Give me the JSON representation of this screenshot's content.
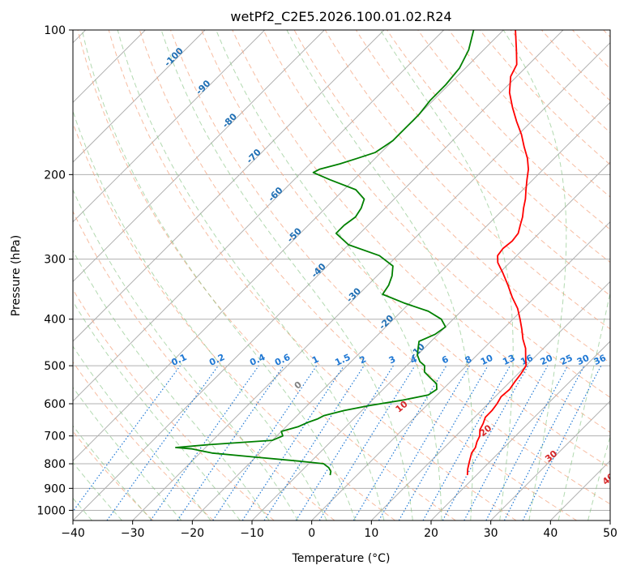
{
  "chart_data": {
    "type": "line",
    "diagram": "skew-T log-P",
    "title": "wetPf2_C2E5.2026.100.01.02.R24",
    "xlabel": "Temperature (°C)",
    "ylabel": "Pressure (hPa)",
    "xlim": [
      -40,
      50
    ],
    "ylim": [
      1050,
      100
    ],
    "y_scale": "log",
    "x_ticks": [
      -40,
      -30,
      -20,
      -10,
      0,
      10,
      20,
      30,
      40,
      50
    ],
    "y_ticks": [
      100,
      200,
      300,
      400,
      500,
      600,
      700,
      800,
      900,
      1000
    ],
    "grid": true,
    "colors": {
      "temperature": "#ff0000",
      "dewpoint": "#008000",
      "isotherm": "#b0b0b0",
      "dry_adiabat": "#f4a582",
      "moist_adiabat": "#7fbf7b",
      "mixing_ratio": "#1f78d4",
      "isotherm_label": "#1f6fb4",
      "moist_label": "#d62728"
    },
    "isotherm_labels": [
      -100,
      -90,
      -80,
      -70,
      -60,
      -50,
      -40,
      -30,
      -20,
      -10
    ],
    "mixing_ratio_labels": [
      "0.1",
      "0.2",
      "0.4",
      "0.6",
      "1",
      "1.5",
      "2",
      "3",
      "4",
      "6",
      "8",
      "10",
      "13",
      "16",
      "20",
      "25",
      "30",
      "36"
    ],
    "moist_adiabat_labels": [
      "0",
      "10",
      "20",
      "30",
      "40"
    ],
    "series": [
      {
        "key": "temperature",
        "pressure": [
          845,
          820,
          790,
          760,
          740,
          720,
          700,
          680,
          660,
          640,
          620,
          600,
          580,
          560,
          540,
          520,
          500,
          480,
          460,
          440,
          420,
          400,
          380,
          360,
          340,
          320,
          305,
          295,
          285,
          275,
          265,
          255,
          245,
          235,
          225,
          215,
          205,
          195,
          185,
          175,
          165,
          155,
          145,
          135,
          125,
          118,
          110,
          100
        ],
        "temp": [
          18.5,
          17.5,
          16.5,
          15.5,
          15.2,
          14.5,
          14.0,
          13.0,
          12.5,
          11.8,
          11.8,
          11.5,
          11.0,
          11.2,
          10.8,
          10.5,
          10.0,
          8.5,
          7.0,
          5.0,
          3.2,
          1.2,
          -1.0,
          -3.8,
          -6.5,
          -9.5,
          -12.0,
          -13.2,
          -13.5,
          -13.2,
          -13.5,
          -14.5,
          -15.5,
          -16.8,
          -18.0,
          -19.5,
          -21.0,
          -22.5,
          -24.5,
          -27.0,
          -29.5,
          -32.5,
          -35.5,
          -38.5,
          -41.0,
          -42.0,
          -44.5,
          -48.0
        ]
      },
      {
        "key": "dewpoint",
        "pressure": [
          845,
          830,
          815,
          800,
          790,
          775,
          760,
          745,
          740,
          730,
          715,
          700,
          685,
          670,
          655,
          645,
          635,
          620,
          605,
          590,
          575,
          560,
          545,
          530,
          515,
          500,
          490,
          475,
          460,
          445,
          430,
          415,
          400,
          385,
          370,
          355,
          340,
          325,
          310,
          295,
          280,
          265,
          255,
          245,
          235,
          225,
          215,
          205,
          198,
          195,
          190,
          185,
          180,
          175,
          170,
          165,
          160,
          155,
          150,
          140,
          130,
          120,
          110,
          100
        ],
        "dewpt": [
          -4.5,
          -5.0,
          -6.0,
          -7.5,
          -12.0,
          -20.0,
          -28.0,
          -32.0,
          -35.0,
          -30.0,
          -20.0,
          -19.0,
          -20.0,
          -18.0,
          -17.0,
          -16.0,
          -15.5,
          -13.0,
          -9.5,
          -5.0,
          -1.5,
          -1.0,
          -2.0,
          -4.0,
          -6.0,
          -7.0,
          -8.5,
          -10.0,
          -11.0,
          -12.0,
          -10.5,
          -10.0,
          -12.0,
          -15.5,
          -21.0,
          -26.0,
          -26.5,
          -27.5,
          -29.0,
          -33.0,
          -40.0,
          -44.0,
          -44.0,
          -43.5,
          -44.0,
          -45.0,
          -48.0,
          -54.0,
          -58.0,
          -57.5,
          -55.0,
          -53.0,
          -51.0,
          -50.5,
          -50.0,
          -50.0,
          -50.0,
          -50.0,
          -50.0,
          -50.5,
          -50.5,
          -51.0,
          -52.5,
          -55.0
        ]
      }
    ]
  }
}
